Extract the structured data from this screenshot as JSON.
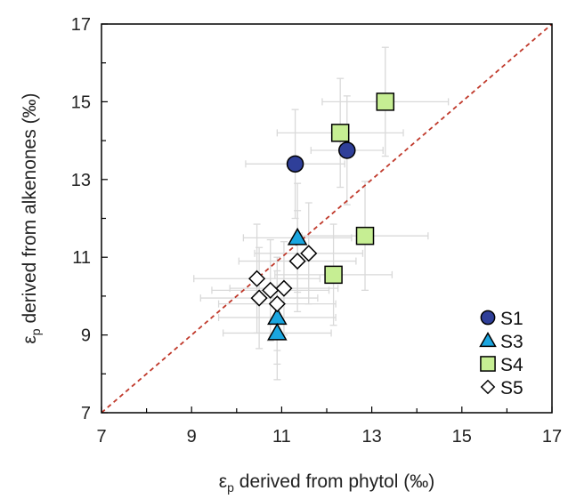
{
  "chart_data": {
    "type": "scatter",
    "title": "",
    "xlabel_main": "ε",
    "xlabel_sub": "p",
    "xlabel_rest": " derived from phytol (‰)",
    "ylabel_main": "ε",
    "ylabel_sub": "p",
    "ylabel_rest": " derived from alkenones (‰)",
    "xlim": [
      7,
      17
    ],
    "ylim": [
      7,
      17
    ],
    "xticks": [
      "7",
      "9",
      "11",
      "13",
      "15",
      "17"
    ],
    "yticks": [
      "7",
      "9",
      "11",
      "13",
      "15",
      "17"
    ],
    "xtick_values": [
      7,
      9,
      11,
      13,
      15,
      17
    ],
    "ytick_values": [
      7,
      9,
      11,
      13,
      15,
      17
    ],
    "reference_line": {
      "from": [
        7,
        7
      ],
      "to": [
        17,
        17
      ],
      "style": "dashed",
      "color": "#c0392b"
    },
    "legend_position": "bottom-right",
    "error_bar_color": "#d9d9d9",
    "series": [
      {
        "name": "S1",
        "marker": "circle",
        "fill": "#2f3f99",
        "points": [
          {
            "x": 11.3,
            "y": 13.4,
            "xerr": 1.1,
            "yerr": 1.4
          },
          {
            "x": 12.45,
            "y": 13.75,
            "xerr": 0.8,
            "yerr": 1.4
          }
        ]
      },
      {
        "name": "S3",
        "marker": "triangle",
        "fill": "#1aa6e0",
        "points": [
          {
            "x": 11.35,
            "y": 11.5,
            "xerr": 1.2,
            "yerr": 1.4
          },
          {
            "x": 10.9,
            "y": 9.45,
            "xerr": 1.3,
            "yerr": 1.2
          },
          {
            "x": 10.9,
            "y": 9.05,
            "xerr": 1.2,
            "yerr": 1.2
          }
        ]
      },
      {
        "name": "S4",
        "marker": "square",
        "fill": "#c6ee93",
        "points": [
          {
            "x": 13.3,
            "y": 15.0,
            "xerr": 1.4,
            "yerr": 1.4
          },
          {
            "x": 12.3,
            "y": 14.2,
            "xerr": 1.4,
            "yerr": 1.4
          },
          {
            "x": 12.85,
            "y": 11.55,
            "xerr": 1.4,
            "yerr": 1.4
          },
          {
            "x": 12.15,
            "y": 10.55,
            "xerr": 1.3,
            "yerr": 1.3
          }
        ]
      },
      {
        "name": "S5",
        "marker": "diamond",
        "fill": "#ffffff",
        "points": [
          {
            "x": 11.6,
            "y": 11.1,
            "xerr": 1.2,
            "yerr": 1.3
          },
          {
            "x": 11.35,
            "y": 10.9,
            "xerr": 1.3,
            "yerr": 1.3
          },
          {
            "x": 10.45,
            "y": 10.45,
            "xerr": 1.4,
            "yerr": 1.4
          },
          {
            "x": 10.75,
            "y": 10.15,
            "xerr": 1.3,
            "yerr": 1.3
          },
          {
            "x": 11.05,
            "y": 10.2,
            "xerr": 1.2,
            "yerr": 1.2
          },
          {
            "x": 10.5,
            "y": 9.95,
            "xerr": 1.3,
            "yerr": 1.3
          },
          {
            "x": 10.9,
            "y": 9.8,
            "xerr": 1.3,
            "yerr": 1.2
          }
        ]
      }
    ]
  }
}
